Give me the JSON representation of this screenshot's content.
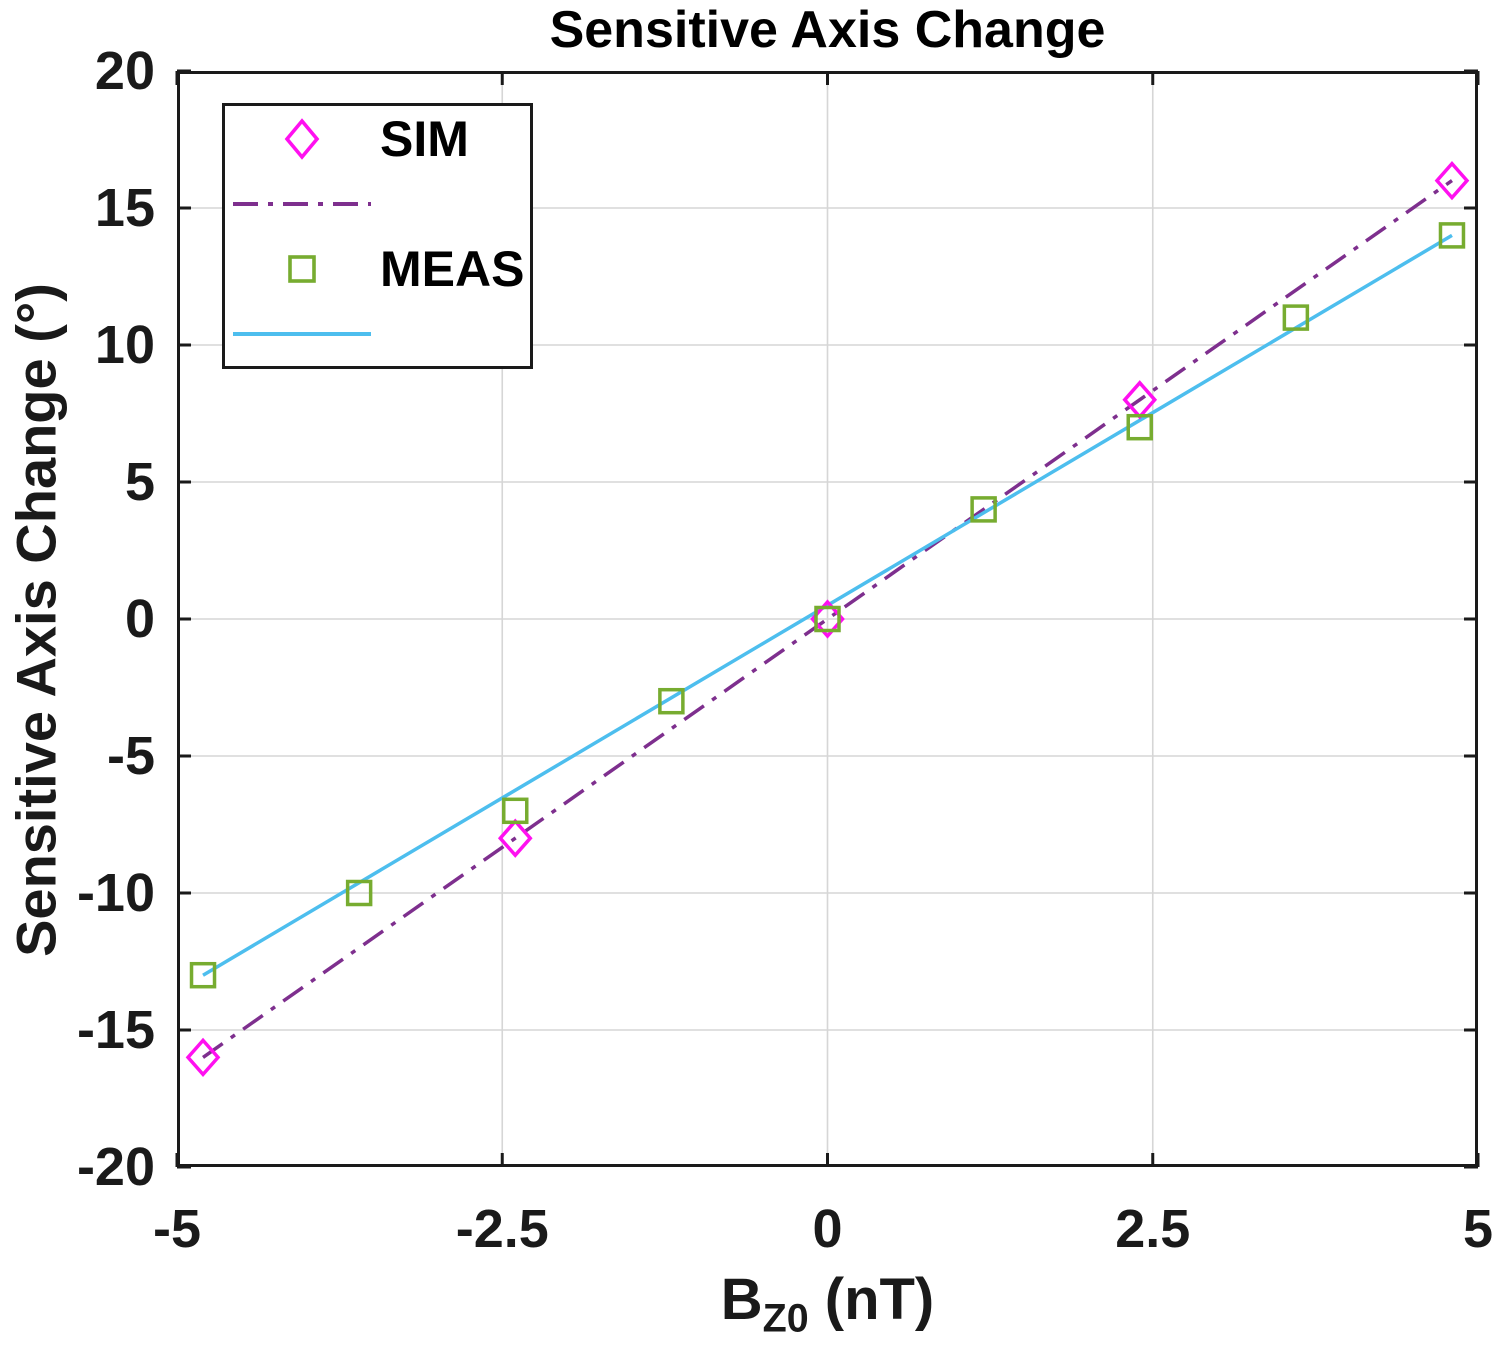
{
  "title": "Sensitive Axis Change",
  "axes": {
    "x_label": {
      "base": "B",
      "sub": "Z0",
      "unit": " (nT)"
    },
    "y_label": "Sensitive Axis Change (°)",
    "x_tick_labels": [
      "-5",
      "-2.5",
      "0",
      "2.5",
      "5"
    ],
    "y_tick_labels": [
      "20",
      "15",
      "10",
      "5",
      "0",
      "-5",
      "-10",
      "-15",
      "-20"
    ]
  },
  "legend": {
    "rows": [
      {
        "kind": "marker",
        "shape": "diamond",
        "label": "SIM",
        "color": "#FF10F0"
      },
      {
        "kind": "line",
        "style": "dash-dot",
        "label": "",
        "color": "#7E2F8E"
      },
      {
        "kind": "marker",
        "shape": "square",
        "label": "MEAS",
        "color": "#77AC30"
      },
      {
        "kind": "line",
        "style": "solid",
        "label": "",
        "color": "#4DBEEE"
      }
    ]
  },
  "chart_data": {
    "type": "scatter",
    "title": "Sensitive Axis Change",
    "xlabel": "B_Z0 (nT)",
    "ylabel": "Sensitive Axis Change (°)",
    "xlim": [
      -5,
      5
    ],
    "ylim": [
      -20,
      20
    ],
    "x_ticks": [
      -5,
      -2.5,
      0,
      2.5,
      5
    ],
    "y_ticks": [
      -20,
      -15,
      -10,
      -5,
      0,
      5,
      10,
      15,
      20
    ],
    "grid": true,
    "legend_position": "top-left",
    "series": [
      {
        "name": "",
        "plot": "line",
        "line_style": "dash-dot",
        "color": "#7E2F8E",
        "x": [
          -4.8,
          4.8
        ],
        "y": [
          -16,
          16
        ]
      },
      {
        "name": "",
        "plot": "line",
        "line_style": "solid",
        "color": "#4DBEEE",
        "x": [
          -4.8,
          4.8
        ],
        "y": [
          -13,
          14
        ]
      },
      {
        "name": "SIM",
        "plot": "scatter",
        "marker": "diamond",
        "color": "#FF10F0",
        "x": [
          -4.8,
          -2.4,
          0,
          2.4,
          4.8
        ],
        "y": [
          -16,
          -8,
          0,
          8,
          16
        ]
      },
      {
        "name": "MEAS",
        "plot": "scatter",
        "marker": "square",
        "color": "#77AC30",
        "x": [
          -4.8,
          -3.6,
          -2.4,
          -1.2,
          0,
          1.2,
          2.4,
          3.6,
          4.8
        ],
        "y": [
          -13,
          -10,
          -7,
          -3,
          0,
          4,
          7,
          11,
          14
        ]
      }
    ],
    "style": {
      "axis_color": "#1a1a1a",
      "grid_color": "#d6d6d6",
      "background": "#ffffff"
    }
  }
}
